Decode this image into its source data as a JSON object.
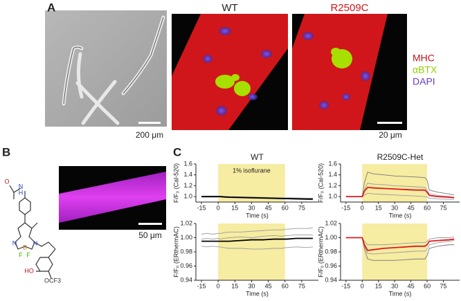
{
  "panels": {
    "A": {
      "label": "A",
      "scale_bar_1": "200 μm",
      "wt_title": "WT",
      "mut_title": "R2509C",
      "scale_bar_2": "20 μm",
      "stain_legend": [
        {
          "label": "MHC",
          "color": "#c0161c"
        },
        {
          "label": "αBTX",
          "color": "#8fce00"
        },
        {
          "label": "DAPI",
          "color": "#6a3bc4"
        }
      ]
    },
    "B": {
      "label": "B",
      "scale_bar": "50 μm",
      "structure_atoms": [
        {
          "text": "O",
          "color": "#c0161c"
        },
        {
          "text": "N",
          "color": "#1f3fbf"
        },
        {
          "text": "H",
          "color": "#1f3fbf"
        },
        {
          "text": "N",
          "color": "#1f3fbf"
        },
        {
          "text": "B",
          "color": "#d0801a"
        },
        {
          "text": "N",
          "color": "#1f3fbf"
        },
        {
          "text": "F",
          "color": "#3cb000"
        },
        {
          "text": "F",
          "color": "#3cb000"
        },
        {
          "text": "HO",
          "color": "#c0161c"
        },
        {
          "text": "OCF3",
          "color": "#333333"
        }
      ]
    },
    "C": {
      "label": "C"
    }
  },
  "chart_data": [
    {
      "type": "line",
      "title": "WT",
      "annotation": "1% isoflurane",
      "xlabel": "Time (s)",
      "ylabel": "F/F₀ (Cal-520)",
      "highlight": [
        0,
        60
      ],
      "highlight_color": "#f6eca2",
      "x": [
        -15,
        -10,
        -5,
        0,
        2,
        5,
        10,
        20,
        30,
        40,
        50,
        58,
        60,
        62,
        70,
        80,
        85
      ],
      "series": [
        {
          "color": "#9a9a9a",
          "values": [
            1.01,
            1.01,
            1.01,
            1.01,
            1.01,
            1.005,
            1.0,
            0.995,
            0.99,
            0.985,
            0.98,
            0.975,
            0.975,
            0.975,
            0.97,
            0.965,
            0.965
          ]
        },
        {
          "color": "#9a9a9a",
          "values": [
            0.99,
            0.99,
            0.99,
            0.99,
            0.99,
            0.985,
            0.98,
            0.975,
            0.97,
            0.965,
            0.96,
            0.955,
            0.955,
            0.955,
            0.95,
            0.945,
            0.94
          ]
        },
        {
          "color": "#9a9a9a",
          "values": [
            1.0,
            1.0,
            1.0,
            1.0,
            1.0,
            0.998,
            0.995,
            0.99,
            0.988,
            0.985,
            0.98,
            0.978,
            0.978,
            0.977,
            0.975,
            0.97,
            0.97
          ]
        },
        {
          "color": "#000000",
          "values": [
            1.0,
            1.0,
            1.0,
            1.0,
            1.0,
            0.995,
            0.99,
            0.985,
            0.98,
            0.975,
            0.97,
            0.965,
            0.965,
            0.965,
            0.96,
            0.955,
            0.955
          ]
        }
      ],
      "xlim": [
        -20,
        90
      ],
      "ylim": [
        0.9,
        1.6
      ],
      "xticks": [
        -15,
        0,
        15,
        30,
        45,
        60,
        75
      ],
      "yticks": [
        {
          "value": 1,
          "label": "1.0"
        },
        1.2,
        1.4,
        1.6
      ]
    },
    {
      "type": "line",
      "title": "R2509C-Het",
      "xlabel": "Time (s)",
      "ylabel": "F/F₀ (Cal-520)",
      "highlight": [
        0,
        60
      ],
      "highlight_color": "#f6eca2",
      "x": [
        -15,
        -10,
        -5,
        0,
        2,
        5,
        10,
        20,
        30,
        40,
        50,
        58,
        60,
        62,
        70,
        80,
        85
      ],
      "series": [
        {
          "color": "#777777",
          "values": [
            1.0,
            1.0,
            1.0,
            1.0,
            1.25,
            1.45,
            1.42,
            1.4,
            1.38,
            1.37,
            1.36,
            1.35,
            1.3,
            1.12,
            1.08,
            1.05,
            1.03
          ]
        },
        {
          "color": "#9a9a9a",
          "values": [
            1.0,
            1.0,
            1.0,
            1.0,
            1.12,
            1.25,
            1.23,
            1.22,
            1.2,
            1.19,
            1.18,
            1.17,
            1.12,
            1.05,
            1.02,
            1.0,
            0.99
          ]
        },
        {
          "color": "#9a9a9a",
          "values": [
            1.0,
            1.0,
            1.0,
            1.0,
            1.03,
            1.06,
            1.05,
            1.04,
            1.03,
            1.02,
            1.01,
            1.0,
            0.99,
            0.97,
            0.96,
            0.95,
            0.95
          ]
        },
        {
          "color": "#e0191f",
          "values": [
            1.0,
            1.0,
            1.0,
            1.0,
            1.1,
            1.17,
            1.16,
            1.15,
            1.14,
            1.13,
            1.12,
            1.12,
            1.08,
            1.02,
            1.0,
            0.99,
            0.98
          ]
        }
      ],
      "xlim": [
        -20,
        90
      ],
      "ylim": [
        0.9,
        1.6
      ],
      "xticks": [
        -15,
        0,
        15,
        30,
        45,
        60,
        75
      ],
      "yticks": [
        {
          "value": 1,
          "label": "1.0"
        },
        1.2,
        1.4,
        1.6
      ]
    },
    {
      "type": "line",
      "xlabel": "Time (s)",
      "ylabel": "F/F₀ (ERthermAC)",
      "highlight": [
        0,
        60
      ],
      "highlight_color": "#f6eca2",
      "x": [
        -15,
        -10,
        -5,
        0,
        2,
        5,
        10,
        20,
        30,
        40,
        50,
        58,
        60,
        62,
        70,
        80,
        85
      ],
      "series": [
        {
          "color": "#9a9a9a",
          "values": [
            1.005,
            1.006,
            1.005,
            1.006,
            1.006,
            1.007,
            1.008,
            1.008,
            1.009,
            1.01,
            1.011,
            1.011,
            1.012,
            1.012,
            1.013,
            1.013,
            1.014
          ]
        },
        {
          "color": "#9a9a9a",
          "values": [
            0.988,
            0.987,
            0.988,
            0.987,
            0.987,
            0.986,
            0.985,
            0.985,
            0.984,
            0.984,
            0.985,
            0.985,
            0.986,
            0.986,
            0.987,
            0.986,
            0.987
          ]
        },
        {
          "color": "#9a9a9a",
          "values": [
            0.998,
            0.999,
            0.998,
            0.999,
            0.998,
            0.999,
            1.0,
            1.001,
            1.0,
            1.002,
            1.003,
            1.002,
            1.003,
            1.003,
            1.004,
            1.004,
            1.004
          ]
        },
        {
          "color": "#000000",
          "values": [
            0.995,
            0.995,
            0.995,
            0.995,
            0.995,
            0.995,
            0.995,
            0.996,
            0.997,
            0.997,
            0.998,
            0.998,
            0.998,
            0.998,
            0.999,
            0.999,
            0.999
          ]
        }
      ],
      "xlim": [
        -20,
        90
      ],
      "ylim": [
        0.94,
        1.02
      ],
      "xticks": [
        -15,
        0,
        15,
        30,
        45,
        60,
        75
      ],
      "yticks": [
        0.94,
        0.96,
        0.98,
        {
          "value": 1,
          "label": "1.00"
        },
        1.02
      ]
    },
    {
      "type": "line",
      "xlabel": "Time (s)",
      "ylabel": "F/F₀ (ERthermAC)",
      "highlight": [
        0,
        60
      ],
      "highlight_color": "#f6eca2",
      "x": [
        -15,
        -10,
        -5,
        0,
        2,
        5,
        10,
        20,
        30,
        40,
        50,
        58,
        60,
        62,
        70,
        80,
        85
      ],
      "series": [
        {
          "color": "#777777",
          "values": [
            1.0,
            1.0,
            1.0,
            1.0,
            0.985,
            0.97,
            0.968,
            0.968,
            0.968,
            0.969,
            0.97,
            0.97,
            0.975,
            0.985,
            0.988,
            0.99,
            0.99
          ]
        },
        {
          "color": "#9a9a9a",
          "values": [
            1.0,
            1.0,
            1.0,
            1.0,
            0.995,
            0.99,
            0.99,
            0.99,
            0.991,
            0.992,
            0.993,
            0.993,
            0.995,
            0.998,
            1.0,
            1.0,
            1.001
          ]
        },
        {
          "color": "#9a9a9a",
          "values": [
            1.0,
            1.0,
            1.0,
            1.0,
            0.988,
            0.978,
            0.977,
            0.978,
            0.979,
            0.98,
            0.981,
            0.981,
            0.984,
            0.99,
            0.993,
            0.995,
            0.996
          ]
        },
        {
          "color": "#e0191f",
          "values": [
            1.0,
            1.0,
            1.0,
            1.0,
            0.99,
            0.982,
            0.983,
            0.985,
            0.986,
            0.987,
            0.988,
            0.988,
            0.99,
            0.995,
            0.996,
            0.997,
            0.998
          ]
        }
      ],
      "xlim": [
        -20,
        90
      ],
      "ylim": [
        0.94,
        1.02
      ],
      "xticks": [
        -15,
        0,
        15,
        30,
        45,
        60,
        75
      ],
      "yticks": [
        0.94,
        0.96,
        0.98,
        {
          "value": 1,
          "label": "1.00"
        },
        1.02
      ]
    }
  ]
}
